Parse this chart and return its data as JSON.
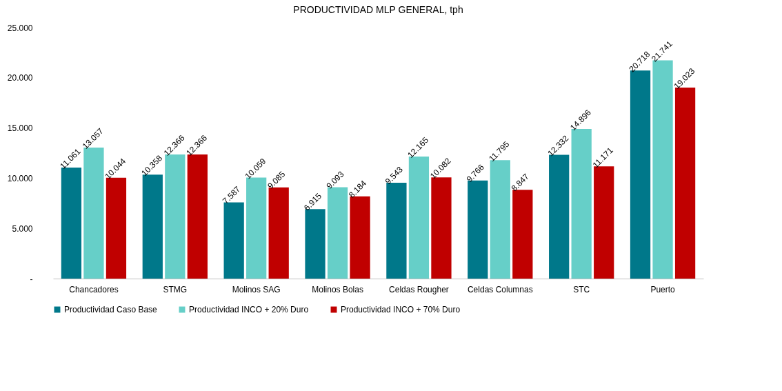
{
  "chart_data": {
    "type": "bar",
    "title": "PRODUCTIVIDAD MLP GENERAL, tph",
    "categories": [
      "Chancadores",
      "STMG",
      "Molinos SAG",
      "Molinos Bolas",
      "Celdas Rougher",
      "Celdas Columnas",
      "STC",
      "Puerto"
    ],
    "series": [
      {
        "name": "Productividad Caso Base",
        "color": "#00788a",
        "values": [
          11061,
          10358,
          7587,
          6915,
          9543,
          9766,
          12332,
          20718
        ],
        "value_labels": [
          "11.061",
          "10.358",
          "7.587",
          "6.915",
          "9.543",
          "9.766",
          "12.332",
          "20.718"
        ]
      },
      {
        "name": "Productividad INCO + 20% Duro",
        "color": "#66cfc8",
        "values": [
          13057,
          12366,
          10059,
          9093,
          12165,
          11795,
          14896,
          21741
        ],
        "value_labels": [
          "13.057",
          "12.366",
          "10.059",
          "9.093",
          "12.165",
          "11.795",
          "14.896",
          "21.741"
        ]
      },
      {
        "name": "Productividad INCO + 70% Duro",
        "color": "#c00000",
        "values": [
          10044,
          12366,
          9085,
          8184,
          10082,
          8847,
          11171,
          19023
        ],
        "value_labels": [
          "10.044",
          "12.366",
          "9.085",
          "8.184",
          "10.082",
          "8.847",
          "11.171",
          "19.023"
        ]
      }
    ],
    "ylim": [
      0,
      25000
    ],
    "yticks": [
      {
        "value": 0,
        "label": "-"
      },
      {
        "value": 5000,
        "label": "5.000"
      },
      {
        "value": 10000,
        "label": "10.000"
      },
      {
        "value": 15000,
        "label": "15.000"
      },
      {
        "value": 20000,
        "label": "20.000"
      },
      {
        "value": 25000,
        "label": "25.000"
      }
    ],
    "grid": false,
    "legend": "bottom"
  }
}
